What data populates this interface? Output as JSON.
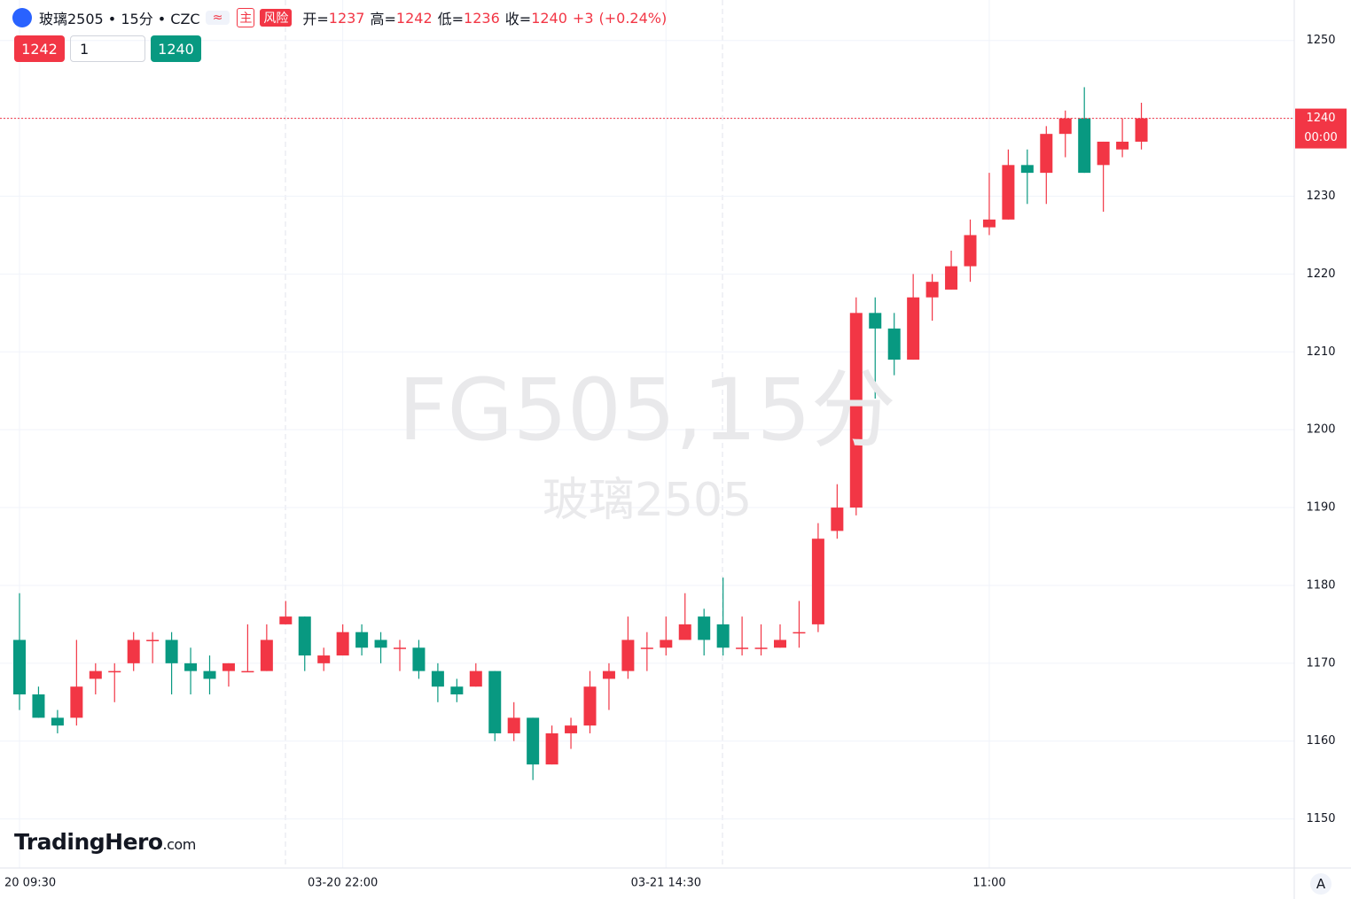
{
  "header": {
    "symbol": "玻璃2505 • 15分 • CZC",
    "approx": "≈",
    "main": "主",
    "risk": "风险",
    "open_label": "开=",
    "high_label": "高=",
    "low_label": "低=",
    "close_label": "收=",
    "change": {
      "value": 3,
      "label": "+3"
    },
    "change_pct": {
      "value": 0.24,
      "label": "(+0.24%)"
    }
  },
  "order": {
    "sell_price": 1242,
    "quantity": 1,
    "buy_price": 1240
  },
  "watermark": {
    "symbol": "FG505,15分",
    "name": "玻璃2505"
  },
  "countdown": "00:00",
  "logo": {
    "brand": "TradingHero",
    "suffix": ".com"
  },
  "auto_scale": "A",
  "chart_data": {
    "type": "candlestick",
    "categories": [
      "20 09:30",
      null,
      null,
      null,
      null,
      null,
      null,
      null,
      null,
      null,
      null,
      null,
      null,
      null,
      null,
      null,
      null,
      "03-20 22:00",
      null,
      null,
      null,
      null,
      null,
      null,
      null,
      null,
      null,
      null,
      null,
      null,
      null,
      null,
      null,
      null,
      "03-21 14:30",
      null,
      null,
      null,
      null,
      null,
      null,
      null,
      null,
      null,
      null,
      null,
      null,
      null,
      null,
      null,
      null,
      "11:00",
      null,
      null,
      null,
      null,
      null,
      null,
      null,
      null
    ],
    "open": [
      1173,
      1166,
      1163,
      1163,
      1168,
      1169,
      1170,
      1173,
      1173,
      1170,
      1169,
      1169,
      1169,
      1169,
      1175,
      1176,
      1170,
      1171,
      1174,
      1173,
      1172,
      1172,
      1169,
      1167,
      1167,
      1169,
      1161,
      1163,
      1157,
      1161,
      1162,
      1168,
      1169,
      1172,
      1172,
      1173,
      1176,
      1175,
      1172,
      1172,
      1172,
      1174,
      1175,
      1187,
      1190,
      1215,
      1213,
      1209,
      1217,
      1218,
      1221,
      1226,
      1227,
      1234,
      1233,
      1238,
      1240,
      1234,
      1236,
      1237
    ],
    "high": [
      1179,
      1167,
      1164,
      1173,
      1170,
      1170,
      1174,
      1174,
      1174,
      1172,
      1171,
      1170,
      1175,
      1175,
      1178,
      1176,
      1172,
      1175,
      1175,
      1174,
      1173,
      1173,
      1170,
      1168,
      1170,
      1169,
      1165,
      1163,
      1162,
      1163,
      1169,
      1170,
      1176,
      1174,
      1176,
      1179,
      1177,
      1181,
      1176,
      1175,
      1175,
      1178,
      1188,
      1193,
      1217,
      1217,
      1215,
      1220,
      1220,
      1223,
      1227,
      1233,
      1236,
      1236,
      1239,
      1241,
      1244,
      1237,
      1240,
      1242
    ],
    "low": [
      1164,
      1163,
      1161,
      1162,
      1166,
      1165,
      1169,
      1170,
      1166,
      1166,
      1166,
      1167,
      1169,
      1169,
      1175,
      1169,
      1169,
      1171,
      1171,
      1170,
      1169,
      1168,
      1165,
      1165,
      1167,
      1160,
      1160,
      1155,
      1157,
      1159,
      1161,
      1164,
      1168,
      1169,
      1171,
      1173,
      1171,
      1171,
      1171,
      1171,
      1172,
      1172,
      1174,
      1186,
      1189,
      1204,
      1207,
      1209,
      1214,
      1218,
      1219,
      1225,
      1227,
      1229,
      1229,
      1235,
      1233,
      1228,
      1235,
      1236
    ],
    "close": [
      1166,
      1163,
      1162,
      1167,
      1169,
      1169,
      1173,
      1173,
      1170,
      1169,
      1168,
      1170,
      1169,
      1173,
      1176,
      1171,
      1171,
      1174,
      1172,
      1172,
      1172,
      1169,
      1167,
      1166,
      1169,
      1161,
      1163,
      1157,
      1161,
      1162,
      1167,
      1169,
      1173,
      1172,
      1173,
      1175,
      1173,
      1172,
      1172,
      1172,
      1173,
      1174,
      1186,
      1190,
      1215,
      1213,
      1209,
      1217,
      1219,
      1221,
      1225,
      1227,
      1234,
      1233,
      1238,
      1240,
      1233,
      1237,
      1237,
      1240
    ],
    "up_color": "#f23645",
    "down_color": "#089981",
    "ylim": [
      1143.7,
      1255.2
    ],
    "yticks": [
      1150,
      1160,
      1170,
      1180,
      1190,
      1200,
      1210,
      1220,
      1230,
      1240,
      1250
    ],
    "grid": true
  }
}
